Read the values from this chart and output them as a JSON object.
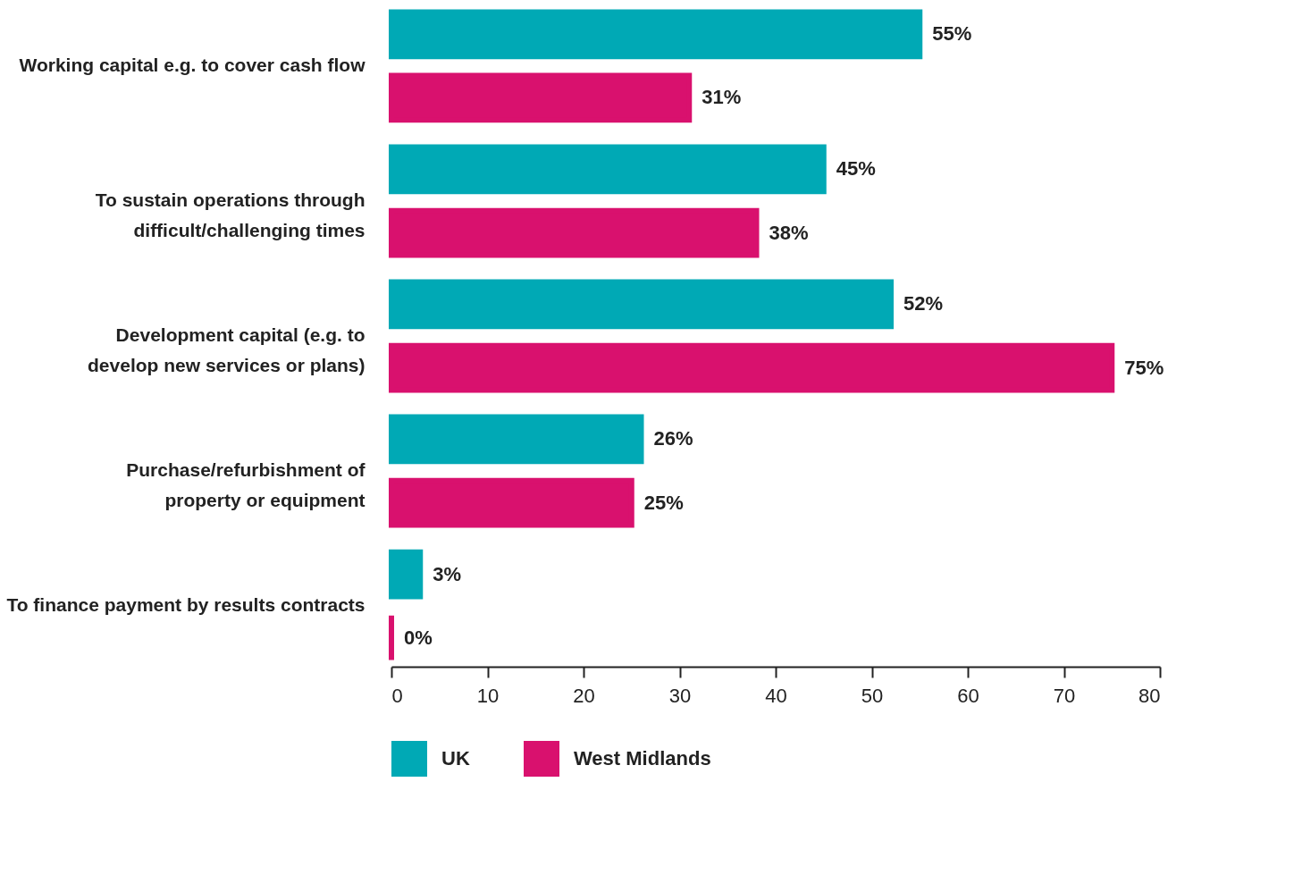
{
  "chart_data": {
    "type": "bar",
    "orientation": "horizontal",
    "categories": [
      "Working capital e.g. to cover cash flow",
      "To sustain operations through difficult/challenging times",
      "Development capital (e.g. to develop new services or plans)",
      "Purchase/refurbishment of property or equipment",
      "To finance payment by results contracts"
    ],
    "series": [
      {
        "name": "UK",
        "color": "#00a9b5",
        "values": [
          55,
          45,
          52,
          26,
          3
        ],
        "value_labels": [
          "55%",
          "45%",
          "52%",
          "26%",
          "3%"
        ]
      },
      {
        "name": "West Midlands",
        "color": "#d9116e",
        "values": [
          31,
          38,
          75,
          25,
          0
        ],
        "value_labels": [
          "31%",
          "38%",
          "75%",
          "25%",
          "0%"
        ]
      }
    ],
    "xlim": [
      0,
      80
    ],
    "xticks": [
      0,
      10,
      20,
      30,
      40,
      50,
      60,
      70,
      80
    ],
    "grid": false,
    "legend": "bottom"
  }
}
